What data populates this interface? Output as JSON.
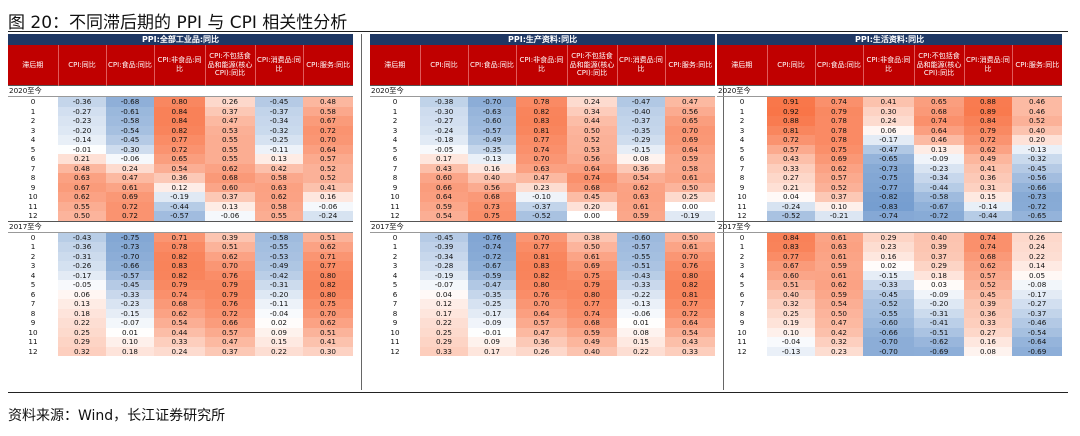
{
  "title": "图 20：不同滞后期的 PPI 与 CPI 相关性分析",
  "source": "资料来源：Wind，长江证券研究所",
  "colors": {
    "header_dark": "#1f3864",
    "header_red": "#c00000",
    "positive": "#f8696b",
    "negative": "#5a8ac6"
  },
  "panels": [
    {
      "name": "PPI:全部工业品:同比",
      "columns": [
        "滞后期",
        "CPI:同比",
        "CPI:食品:同比",
        "CPI:非食品:同比",
        "CPI:不包括食品和能源(核心CPI):同比",
        "CPI:消费品:同比",
        "CPI:服务:同比"
      ],
      "sections": [
        {
          "label": "2020至今",
          "rows": [
            [
              "0",
              "-0.36",
              "-0.68",
              "0.80",
              "0.26",
              "-0.45",
              "0.48"
            ],
            [
              "1",
              "-0.27",
              "-0.61",
              "0.84",
              "0.37",
              "-0.37",
              "0.58"
            ],
            [
              "2",
              "-0.23",
              "-0.58",
              "0.84",
              "0.47",
              "-0.34",
              "0.67"
            ],
            [
              "3",
              "-0.20",
              "-0.54",
              "0.82",
              "0.53",
              "-0.32",
              "0.72"
            ],
            [
              "4",
              "-0.14",
              "-0.45",
              "0.77",
              "0.55",
              "-0.25",
              "0.70"
            ],
            [
              "5",
              "-0.01",
              "-0.30",
              "0.72",
              "0.55",
              "-0.11",
              "0.64"
            ],
            [
              "6",
              "0.21",
              "-0.06",
              "0.65",
              "0.55",
              "0.13",
              "0.57"
            ],
            [
              "7",
              "0.48",
              "0.24",
              "0.54",
              "0.62",
              "0.42",
              "0.52"
            ],
            [
              "8",
              "0.63",
              "0.47",
              "0.36",
              "0.68",
              "0.58",
              "0.52"
            ],
            [
              "9",
              "0.67",
              "0.61",
              "0.12",
              "0.60",
              "0.63",
              "0.41"
            ],
            [
              "10",
              "0.62",
              "0.69",
              "-0.19",
              "0.37",
              "0.62",
              "0.16"
            ],
            [
              "11",
              "0.55",
              "0.72",
              "-0.44",
              "0.13",
              "0.58",
              "-0.06"
            ],
            [
              "12",
              "0.50",
              "0.72",
              "-0.57",
              "-0.06",
              "0.55",
              "-0.24"
            ]
          ]
        },
        {
          "label": "2017至今",
          "rows": [
            [
              "0",
              "-0.43",
              "-0.75",
              "0.71",
              "0.39",
              "-0.58",
              "0.51"
            ],
            [
              "1",
              "-0.36",
              "-0.73",
              "0.78",
              "0.51",
              "-0.55",
              "0.62"
            ],
            [
              "2",
              "-0.31",
              "-0.70",
              "0.82",
              "0.62",
              "-0.53",
              "0.71"
            ],
            [
              "3",
              "-0.26",
              "-0.66",
              "0.83",
              "0.70",
              "-0.49",
              "0.77"
            ],
            [
              "4",
              "-0.17",
              "-0.57",
              "0.82",
              "0.76",
              "-0.42",
              "0.80"
            ],
            [
              "5",
              "-0.05",
              "-0.45",
              "0.79",
              "0.79",
              "-0.31",
              "0.82"
            ],
            [
              "6",
              "0.06",
              "-0.33",
              "0.74",
              "0.79",
              "-0.20",
              "0.80"
            ],
            [
              "7",
              "0.13",
              "-0.23",
              "0.68",
              "0.76",
              "-0.11",
              "0.75"
            ],
            [
              "8",
              "0.18",
              "-0.15",
              "0.62",
              "0.72",
              "-0.04",
              "0.70"
            ],
            [
              "9",
              "0.22",
              "-0.07",
              "0.54",
              "0.66",
              "0.02",
              "0.62"
            ],
            [
              "10",
              "0.25",
              "0.01",
              "0.44",
              "0.57",
              "0.09",
              "0.51"
            ],
            [
              "11",
              "0.29",
              "0.10",
              "0.33",
              "0.47",
              "0.15",
              "0.41"
            ],
            [
              "12",
              "0.32",
              "0.18",
              "0.24",
              "0.37",
              "0.22",
              "0.30"
            ]
          ]
        }
      ]
    },
    {
      "name": "PPI:生产资料:同比",
      "columns": [
        "滞后期",
        "CPI:同比",
        "CPI:食品:同比",
        "CPI:非食品:同比",
        "CPI:不包括食品和能源(核心CPI):同比",
        "CPI:消费品:同比",
        "CPI:服务:同比"
      ],
      "sections": [
        {
          "label": "2020至今",
          "rows": [
            [
              "0",
              "-0.38",
              "-0.70",
              "0.78",
              "0.24",
              "-0.47",
              "0.47"
            ],
            [
              "1",
              "-0.30",
              "-0.63",
              "0.82",
              "0.34",
              "-0.40",
              "0.56"
            ],
            [
              "2",
              "-0.27",
              "-0.60",
              "0.83",
              "0.44",
              "-0.37",
              "0.65"
            ],
            [
              "3",
              "-0.24",
              "-0.57",
              "0.81",
              "0.50",
              "-0.35",
              "0.70"
            ],
            [
              "4",
              "-0.18",
              "-0.49",
              "0.77",
              "0.52",
              "-0.29",
              "0.69"
            ],
            [
              "5",
              "-0.05",
              "-0.35",
              "0.74",
              "0.53",
              "-0.15",
              "0.64"
            ],
            [
              "6",
              "0.17",
              "-0.13",
              "0.70",
              "0.56",
              "0.08",
              "0.59"
            ],
            [
              "7",
              "0.43",
              "0.16",
              "0.63",
              "0.64",
              "0.36",
              "0.58"
            ],
            [
              "8",
              "0.60",
              "0.40",
              "0.47",
              "0.74",
              "0.54",
              "0.61"
            ],
            [
              "9",
              "0.66",
              "0.56",
              "0.23",
              "0.68",
              "0.62",
              "0.50"
            ],
            [
              "10",
              "0.64",
              "0.68",
              "-0.10",
              "0.45",
              "0.63",
              "0.25"
            ],
            [
              "11",
              "0.59",
              "0.73",
              "-0.37",
              "0.20",
              "0.61",
              "0.00"
            ],
            [
              "12",
              "0.54",
              "0.75",
              "-0.52",
              "0.00",
              "0.59",
              "-0.19"
            ]
          ]
        },
        {
          "label": "2017至今",
          "rows": [
            [
              "0",
              "-0.45",
              "-0.76",
              "0.70",
              "0.38",
              "-0.60",
              "0.50"
            ],
            [
              "1",
              "-0.39",
              "-0.74",
              "0.77",
              "0.50",
              "-0.57",
              "0.61"
            ],
            [
              "2",
              "-0.34",
              "-0.72",
              "0.81",
              "0.61",
              "-0.55",
              "0.70"
            ],
            [
              "3",
              "-0.28",
              "-0.67",
              "0.83",
              "0.69",
              "-0.51",
              "0.76"
            ],
            [
              "4",
              "-0.19",
              "-0.59",
              "0.82",
              "0.75",
              "-0.43",
              "0.80"
            ],
            [
              "5",
              "-0.07",
              "-0.47",
              "0.80",
              "0.79",
              "-0.33",
              "0.82"
            ],
            [
              "6",
              "0.04",
              "-0.35",
              "0.76",
              "0.80",
              "-0.22",
              "0.81"
            ],
            [
              "7",
              "0.12",
              "-0.25",
              "0.70",
              "0.77",
              "-0.13",
              "0.77"
            ],
            [
              "8",
              "0.17",
              "-0.17",
              "0.64",
              "0.74",
              "-0.06",
              "0.72"
            ],
            [
              "9",
              "0.22",
              "-0.09",
              "0.57",
              "0.68",
              "0.01",
              "0.64"
            ],
            [
              "10",
              "0.25",
              "-0.01",
              "0.47",
              "0.59",
              "0.08",
              "0.54"
            ],
            [
              "11",
              "0.29",
              "0.09",
              "0.36",
              "0.49",
              "0.15",
              "0.43"
            ],
            [
              "12",
              "0.33",
              "0.17",
              "0.26",
              "0.40",
              "0.22",
              "0.33"
            ]
          ]
        }
      ]
    },
    {
      "name": "PPI:生活资料:同比",
      "columns": [
        "滞后期",
        "CPI:同比",
        "CPI:食品:同比",
        "CPI:非食品:同比",
        "CPI:不包括食品和能源(核心CPI):同比",
        "CPI:消费品:同比",
        "CPI:服务:同比"
      ],
      "sections": [
        {
          "label": "2020至今",
          "rows": [
            [
              "0",
              "0.91",
              "0.74",
              "0.41",
              "0.65",
              "0.88",
              "0.46"
            ],
            [
              "1",
              "0.92",
              "0.79",
              "0.30",
              "0.68",
              "0.89",
              "0.46"
            ],
            [
              "2",
              "0.88",
              "0.78",
              "0.24",
              "0.74",
              "0.84",
              "0.52"
            ],
            [
              "3",
              "0.81",
              "0.78",
              "0.06",
              "0.64",
              "0.79",
              "0.40"
            ],
            [
              "4",
              "0.72",
              "0.78",
              "-0.17",
              "0.46",
              "0.72",
              "0.20"
            ],
            [
              "5",
              "0.57",
              "0.75",
              "-0.47",
              "0.13",
              "0.62",
              "-0.13"
            ],
            [
              "6",
              "0.43",
              "0.69",
              "-0.65",
              "-0.09",
              "0.49",
              "-0.32"
            ],
            [
              "7",
              "0.33",
              "0.62",
              "-0.73",
              "-0.23",
              "0.41",
              "-0.45"
            ],
            [
              "8",
              "0.27",
              "0.57",
              "-0.75",
              "-0.34",
              "0.36",
              "-0.56"
            ],
            [
              "9",
              "0.21",
              "0.52",
              "-0.77",
              "-0.44",
              "0.31",
              "-0.66"
            ],
            [
              "10",
              "0.04",
              "0.37",
              "-0.82",
              "-0.58",
              "0.15",
              "-0.73"
            ],
            [
              "11",
              "-0.24",
              "0.10",
              "-0.83",
              "-0.67",
              "-0.14",
              "-0.72"
            ],
            [
              "12",
              "-0.52",
              "-0.21",
              "-0.74",
              "-0.72",
              "-0.44",
              "-0.65"
            ]
          ]
        },
        {
          "label": "2017至今",
          "rows": [
            [
              "0",
              "0.84",
              "0.61",
              "0.29",
              "0.40",
              "0.74",
              "0.26"
            ],
            [
              "1",
              "0.83",
              "0.63",
              "0.23",
              "0.39",
              "0.74",
              "0.24"
            ],
            [
              "2",
              "0.77",
              "0.61",
              "0.16",
              "0.37",
              "0.68",
              "0.22"
            ],
            [
              "3",
              "0.67",
              "0.59",
              "0.02",
              "0.29",
              "0.62",
              "0.14"
            ],
            [
              "4",
              "0.60",
              "0.61",
              "-0.15",
              "0.18",
              "0.57",
              "0.05"
            ],
            [
              "5",
              "0.51",
              "0.62",
              "-0.33",
              "0.03",
              "0.52",
              "-0.08"
            ],
            [
              "6",
              "0.40",
              "0.59",
              "-0.45",
              "-0.09",
              "0.45",
              "-0.17"
            ],
            [
              "7",
              "0.32",
              "0.54",
              "-0.52",
              "-0.20",
              "0.39",
              "-0.27"
            ],
            [
              "8",
              "0.25",
              "0.50",
              "-0.55",
              "-0.31",
              "0.36",
              "-0.37"
            ],
            [
              "9",
              "0.19",
              "0.47",
              "-0.60",
              "-0.41",
              "0.33",
              "-0.46"
            ],
            [
              "10",
              "0.10",
              "0.42",
              "-0.66",
              "-0.51",
              "0.27",
              "-0.54"
            ],
            [
              "11",
              "-0.04",
              "0.32",
              "-0.70",
              "-0.62",
              "0.16",
              "-0.64"
            ],
            [
              "12",
              "-0.13",
              "0.23",
              "-0.70",
              "-0.69",
              "0.08",
              "-0.69"
            ]
          ]
        }
      ]
    }
  ]
}
